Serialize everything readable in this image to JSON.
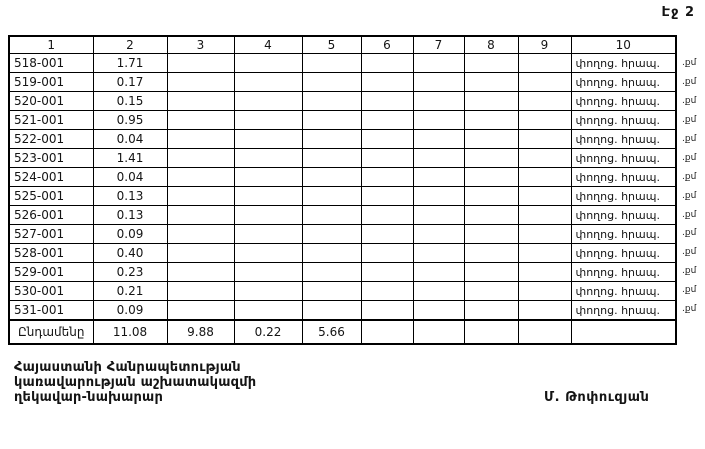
{
  "page": {
    "number_label": "Էջ 2"
  },
  "table": {
    "columns": [
      "1",
      "2",
      "3",
      "4",
      "5",
      "6",
      "7",
      "8",
      "9",
      "10"
    ],
    "rows": [
      {
        "code": "518-001",
        "value": "1.71",
        "note": "փողոց. հրապ.",
        "unit": ".քմ"
      },
      {
        "code": "519-001",
        "value": "0.17",
        "note": "փողոց. հրապ.",
        "unit": ".քմ"
      },
      {
        "code": "520-001",
        "value": "0.15",
        "note": "փողոց. հրապ.",
        "unit": ".քմ"
      },
      {
        "code": "521-001",
        "value": "0.95",
        "note": "փողոց. հրապ.",
        "unit": ".քմ"
      },
      {
        "code": "522-001",
        "value": "0.04",
        "note": "փողոց. հրապ.",
        "unit": ".քմ"
      },
      {
        "code": "523-001",
        "value": "1.41",
        "note": "փողոց. հրապ.",
        "unit": ".քմ"
      },
      {
        "code": "524-001",
        "value": "0.04",
        "note": "փողոց. հրապ.",
        "unit": ".քմ"
      },
      {
        "code": "525-001",
        "value": "0.13",
        "note": "փողոց. հրապ.",
        "unit": ".քմ"
      },
      {
        "code": "526-001",
        "value": "0.13",
        "note": "փողոց. հրապ.",
        "unit": ".քմ"
      },
      {
        "code": "527-001",
        "value": "0.09",
        "note": "փողոց. հրապ.",
        "unit": ".քմ"
      },
      {
        "code": "528-001",
        "value": "0.40",
        "note": "փողոց. հրապ.",
        "unit": ".քմ"
      },
      {
        "code": "529-001",
        "value": "0.23",
        "note": "փողոց. հրապ.",
        "unit": ".քմ"
      },
      {
        "code": "530-001",
        "value": "0.21",
        "note": "փողոց. հրապ.",
        "unit": ".քմ"
      },
      {
        "code": "531-001",
        "value": "0.09",
        "note": "փողոց. հրապ.",
        "unit": ".քմ"
      }
    ],
    "total": {
      "label": "Ընդամենը",
      "values": [
        "11.08",
        "9.88",
        "0.22",
        "5.66",
        "",
        "",
        "",
        "",
        ""
      ]
    }
  },
  "footer": {
    "signatory_title_lines": [
      "Հայաստանի Հանրապետության",
      "կառավարության աշխատակազմի",
      "ղեկավար-նախարար"
    ],
    "signatory_name": "Մ. Թոփուզյան"
  }
}
